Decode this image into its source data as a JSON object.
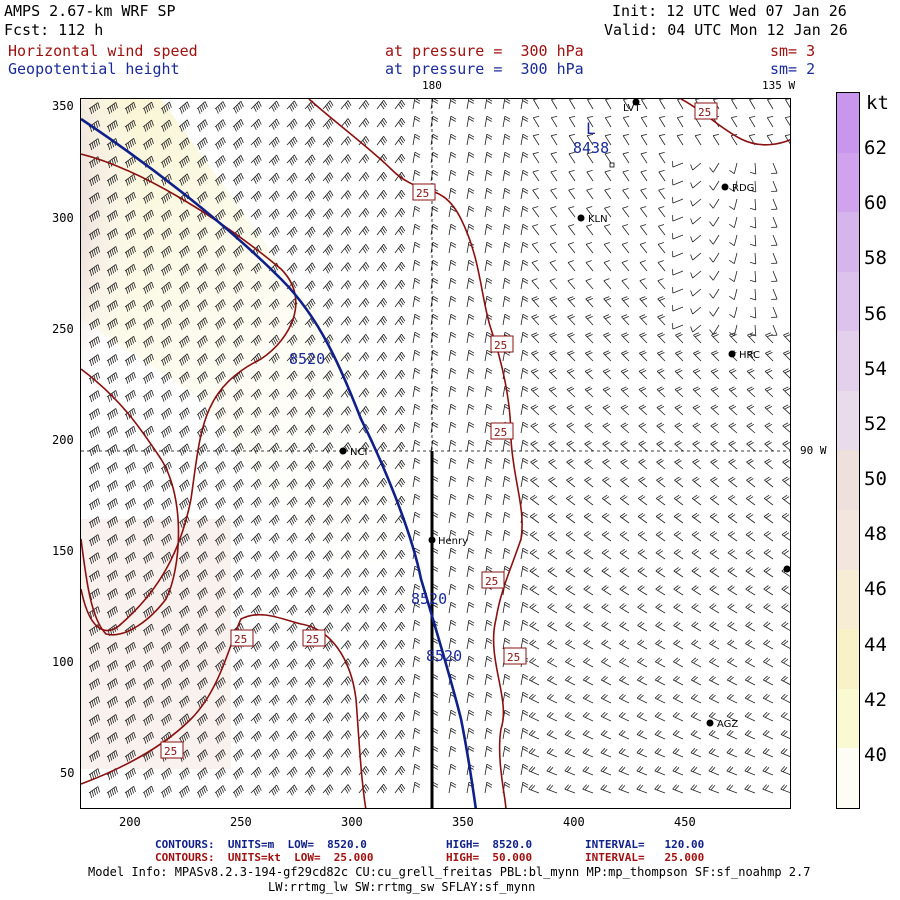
{
  "header": {
    "model": "AMPS 2.67-km WRF SP",
    "fcst": "Fcst: 112 h",
    "init": "Init: 12 UTC Wed 07 Jan 26",
    "valid": "Valid: 04 UTC Mon 12 Jan 26",
    "field1": "Horizontal wind speed",
    "field2": "Geopotential height",
    "press1": "at pressure =  300 hPa",
    "press2": "at pressure =  300 hPa",
    "sm1": "sm= 3",
    "sm2": "sm= 2"
  },
  "map": {
    "x_ticks": [
      "200",
      "250",
      "300",
      "350",
      "400",
      "450"
    ],
    "y_ticks": [
      "350",
      "300",
      "250",
      "200",
      "150",
      "100",
      "50"
    ],
    "meridian_top_label": "180",
    "meridian_135_label": "135 W",
    "meridian_90_label": "90 W",
    "low_label": "L",
    "low_value": "8438",
    "height_labels": [
      "8520",
      "8520",
      "8520"
    ],
    "wind_contour_label": "25",
    "stations": [
      "LVT",
      "RDG",
      "KLN",
      "HRC",
      "NCI",
      "Henry",
      "AGZ"
    ]
  },
  "colorbar": {
    "unit": "kt",
    "labels": [
      "62",
      "60",
      "58",
      "56",
      "54",
      "52",
      "50",
      "48",
      "46",
      "44",
      "42",
      "40"
    ],
    "colors": [
      "#c896ec",
      "#cfa4ec",
      "#d6b4ec",
      "#dcc2ec",
      "#e2d0ec",
      "#e8dcea",
      "#eee0dc",
      "#f2e6de",
      "#f6eed4",
      "#f8f2c8",
      "#fafad2",
      "#fdfdf6"
    ]
  },
  "footer": {
    "line1_left": "CONTOURS:  UNITS=m  LOW=  8520.0",
    "line1_high": "HIGH=  8520.0",
    "line1_int": "INTERVAL=   120.00",
    "line2_left": "CONTOURS:  UNITS=kt  LOW=  25.000",
    "line2_high": "HIGH=  50.000",
    "line2_int": "INTERVAL=   25.000",
    "model_info1": "Model Info: MPASv8.2.3-194-gf29cd82c CU:cu_grell_freitas PBL:bl_mynn MP:mp_thompson SF:sf_noahmp 2.7",
    "model_info2": "LW:rrtmg_lw SW:rrtmg_sw SFLAY:sf_mynn"
  }
}
